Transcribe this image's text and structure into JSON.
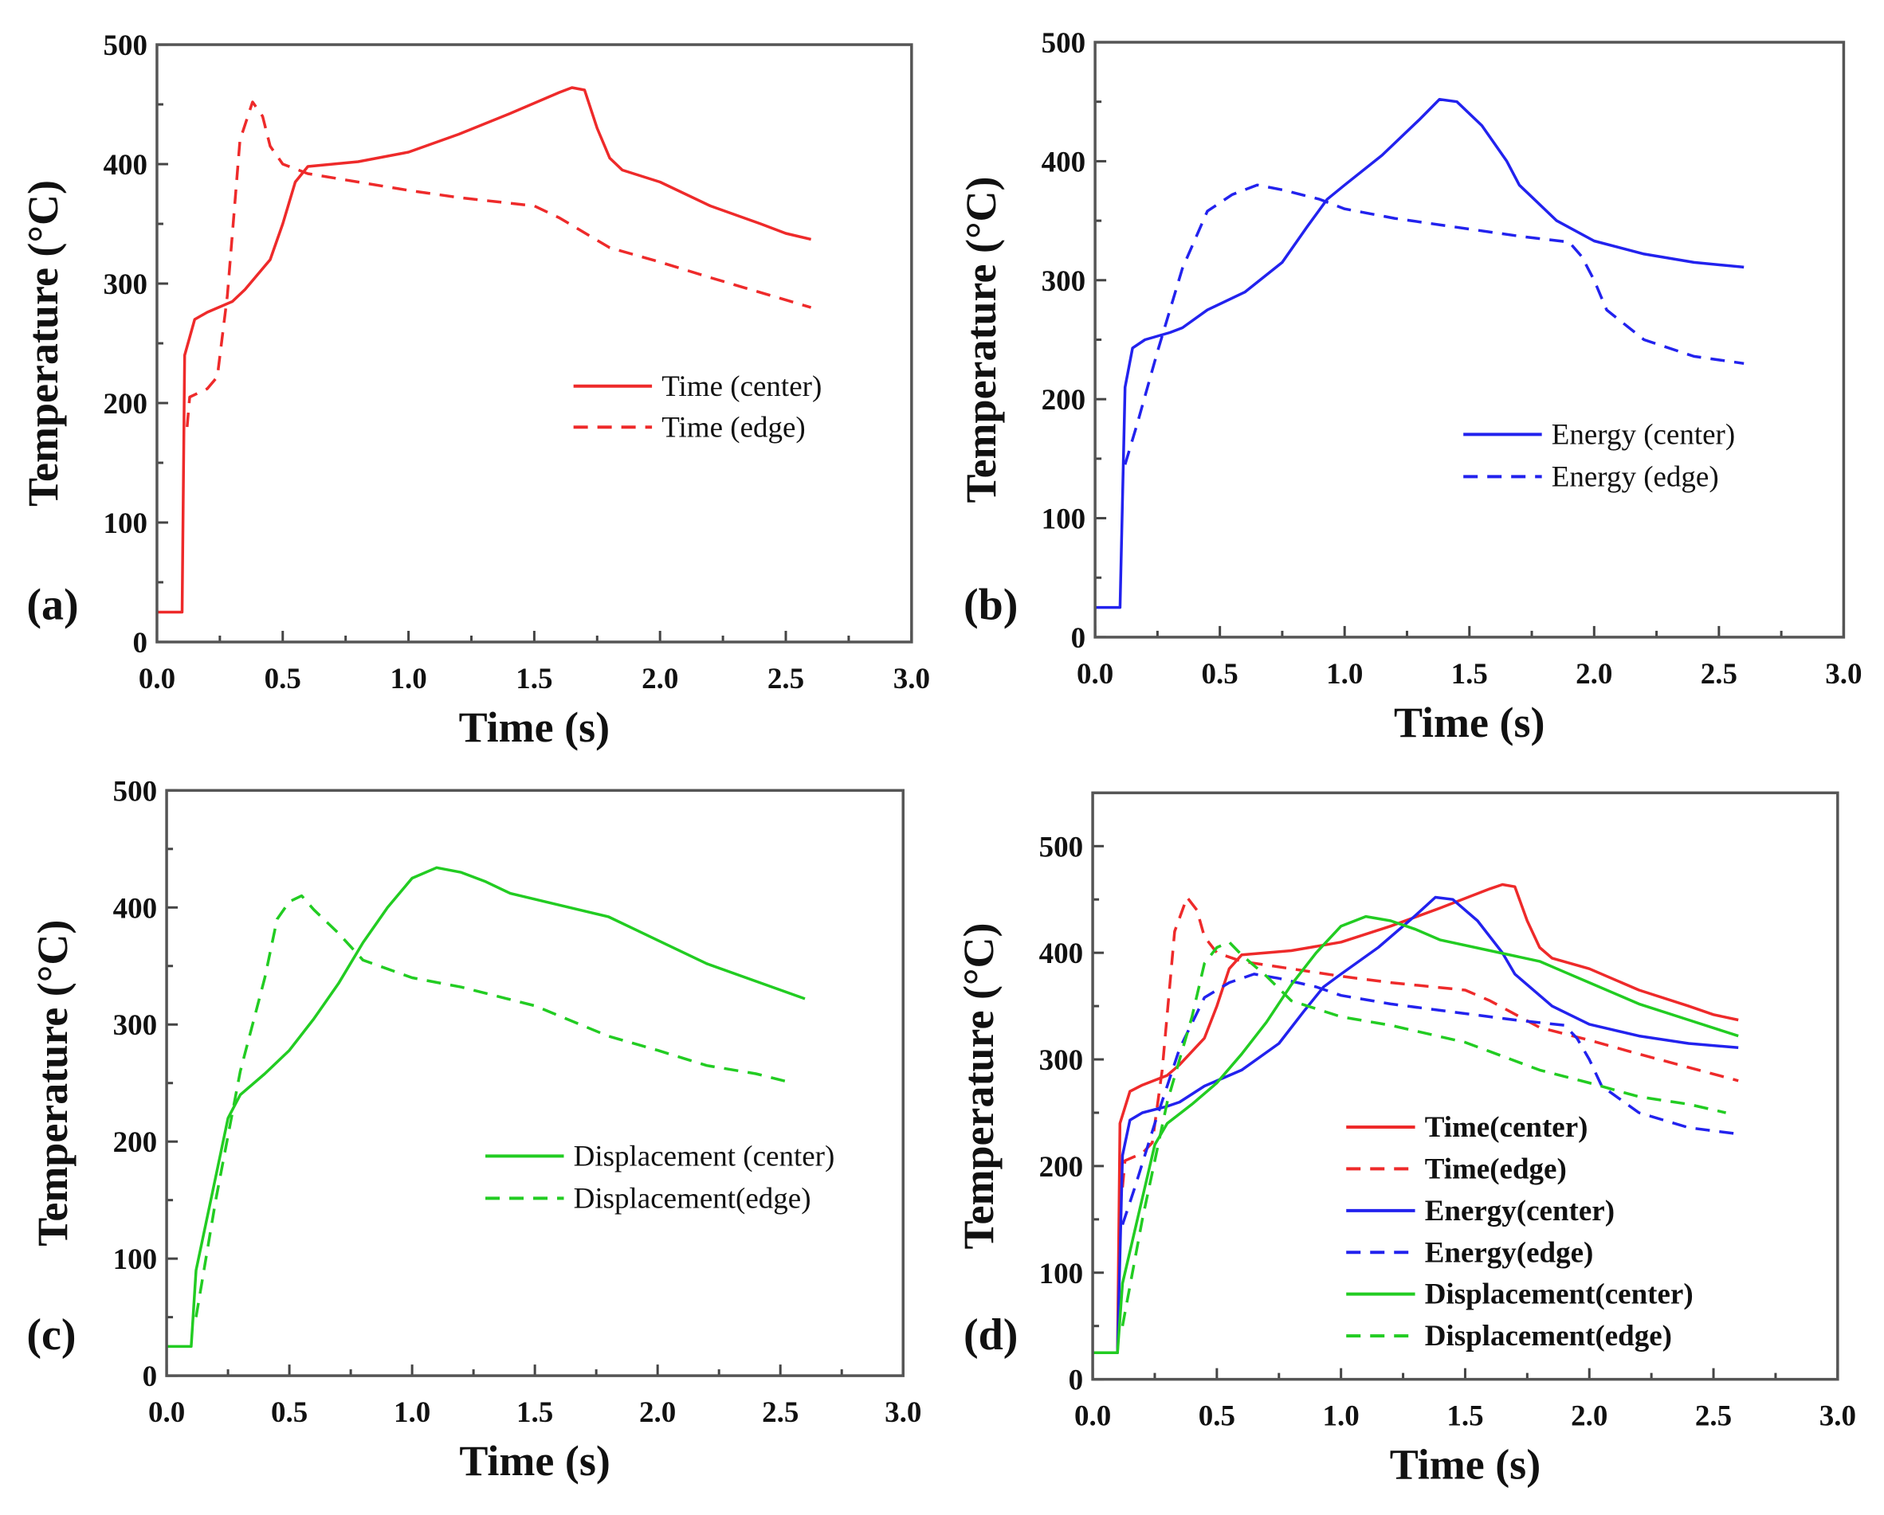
{
  "colors": {
    "time": "#ee2a2a",
    "energy": "#2222ee",
    "displacement": "#22cc22",
    "axis": "#555555"
  },
  "series_data": {
    "time_center": [
      [
        0,
        25
      ],
      [
        0.1,
        25
      ],
      [
        0.11,
        240
      ],
      [
        0.15,
        270
      ],
      [
        0.2,
        276
      ],
      [
        0.3,
        285
      ],
      [
        0.35,
        295
      ],
      [
        0.45,
        320
      ],
      [
        0.5,
        350
      ],
      [
        0.55,
        385
      ],
      [
        0.6,
        398
      ],
      [
        0.8,
        402
      ],
      [
        1.0,
        410
      ],
      [
        1.2,
        425
      ],
      [
        1.4,
        442
      ],
      [
        1.6,
        460
      ],
      [
        1.65,
        464
      ],
      [
        1.7,
        462
      ],
      [
        1.75,
        430
      ],
      [
        1.8,
        405
      ],
      [
        1.85,
        395
      ],
      [
        2.0,
        385
      ],
      [
        2.2,
        365
      ],
      [
        2.4,
        350
      ],
      [
        2.5,
        342
      ],
      [
        2.6,
        337
      ]
    ],
    "time_edge": [
      [
        0.12,
        180
      ],
      [
        0.13,
        205
      ],
      [
        0.2,
        212
      ],
      [
        0.24,
        222
      ],
      [
        0.28,
        290
      ],
      [
        0.33,
        420
      ],
      [
        0.38,
        452
      ],
      [
        0.42,
        440
      ],
      [
        0.45,
        415
      ],
      [
        0.5,
        400
      ],
      [
        0.6,
        392
      ],
      [
        1.0,
        378
      ],
      [
        1.2,
        372
      ],
      [
        1.5,
        365
      ],
      [
        1.6,
        355
      ],
      [
        1.8,
        330
      ],
      [
        2.0,
        318
      ],
      [
        2.2,
        305
      ],
      [
        2.6,
        280
      ]
    ],
    "energy_center": [
      [
        0,
        25
      ],
      [
        0.1,
        25
      ],
      [
        0.12,
        210
      ],
      [
        0.15,
        243
      ],
      [
        0.2,
        250
      ],
      [
        0.3,
        256
      ],
      [
        0.35,
        260
      ],
      [
        0.45,
        275
      ],
      [
        0.6,
        290
      ],
      [
        0.75,
        315
      ],
      [
        0.85,
        345
      ],
      [
        0.93,
        368
      ],
      [
        1.0,
        380
      ],
      [
        1.15,
        405
      ],
      [
        1.3,
        435
      ],
      [
        1.38,
        452
      ],
      [
        1.45,
        450
      ],
      [
        1.55,
        430
      ],
      [
        1.65,
        400
      ],
      [
        1.7,
        380
      ],
      [
        1.85,
        350
      ],
      [
        2.0,
        333
      ],
      [
        2.2,
        322
      ],
      [
        2.4,
        315
      ],
      [
        2.6,
        311
      ]
    ],
    "energy_edge": [
      [
        0.12,
        145
      ],
      [
        0.17,
        180
      ],
      [
        0.25,
        240
      ],
      [
        0.35,
        310
      ],
      [
        0.45,
        358
      ],
      [
        0.55,
        372
      ],
      [
        0.65,
        380
      ],
      [
        0.75,
        376
      ],
      [
        0.9,
        368
      ],
      [
        1.0,
        360
      ],
      [
        1.2,
        352
      ],
      [
        1.5,
        343
      ],
      [
        1.7,
        337
      ],
      [
        1.9,
        332
      ],
      [
        1.95,
        320
      ],
      [
        2.0,
        300
      ],
      [
        2.05,
        275
      ],
      [
        2.2,
        250
      ],
      [
        2.4,
        236
      ],
      [
        2.6,
        230
      ]
    ],
    "disp_center": [
      [
        0,
        25
      ],
      [
        0.1,
        25
      ],
      [
        0.12,
        90
      ],
      [
        0.2,
        170
      ],
      [
        0.25,
        220
      ],
      [
        0.3,
        240
      ],
      [
        0.4,
        258
      ],
      [
        0.5,
        278
      ],
      [
        0.6,
        305
      ],
      [
        0.7,
        335
      ],
      [
        0.8,
        370
      ],
      [
        0.9,
        400
      ],
      [
        1.0,
        425
      ],
      [
        1.1,
        434
      ],
      [
        1.2,
        430
      ],
      [
        1.3,
        422
      ],
      [
        1.4,
        412
      ],
      [
        1.6,
        402
      ],
      [
        1.8,
        392
      ],
      [
        1.9,
        382
      ],
      [
        2.0,
        372
      ],
      [
        2.2,
        352
      ],
      [
        2.4,
        337
      ],
      [
        2.6,
        322
      ]
    ],
    "disp_edge": [
      [
        0.12,
        50
      ],
      [
        0.2,
        150
      ],
      [
        0.3,
        260
      ],
      [
        0.4,
        340
      ],
      [
        0.45,
        390
      ],
      [
        0.5,
        405
      ],
      [
        0.55,
        410
      ],
      [
        0.6,
        398
      ],
      [
        0.7,
        378
      ],
      [
        0.8,
        355
      ],
      [
        1.0,
        340
      ],
      [
        1.2,
        332
      ],
      [
        1.5,
        316
      ],
      [
        1.8,
        290
      ],
      [
        2.0,
        278
      ],
      [
        2.2,
        265
      ],
      [
        2.4,
        258
      ],
      [
        2.55,
        250
      ]
    ]
  },
  "chart_data": [
    {
      "type": "line",
      "panel": "(a)",
      "xlabel": "Time (s)",
      "ylabel": "Temperature  (°C)",
      "xlim": [
        0,
        3
      ],
      "ylim": [
        0,
        500
      ],
      "xticks": [
        "0.0",
        "0.5",
        "1.0",
        "1.5",
        "2.0",
        "2.5",
        "3.0"
      ],
      "yticks": [
        "0",
        "100",
        "200",
        "300",
        "400",
        "500"
      ],
      "legend_placement": "center-right",
      "series": [
        {
          "name": "Time (center)",
          "key": "time_center",
          "color": "time",
          "dash": false
        },
        {
          "name": "Time (edge)",
          "key": "time_edge",
          "color": "time",
          "dash": true
        }
      ]
    },
    {
      "type": "line",
      "panel": "(b)",
      "xlabel": "Time (s)",
      "ylabel": "Temperature  (°C)",
      "xlim": [
        0,
        3
      ],
      "ylim": [
        0,
        500
      ],
      "xticks": [
        "0.0",
        "0.5",
        "1.0",
        "1.5",
        "2.0",
        "2.5",
        "3.0"
      ],
      "yticks": [
        "0",
        "100",
        "200",
        "300",
        "400",
        "500"
      ],
      "legend_placement": "center-right",
      "series": [
        {
          "name": "Energy (center)",
          "key": "energy_center",
          "color": "energy",
          "dash": false
        },
        {
          "name": "Energy (edge)",
          "key": "energy_edge",
          "color": "energy",
          "dash": true
        }
      ]
    },
    {
      "type": "line",
      "panel": "(c)",
      "xlabel": "Time (s)",
      "ylabel": "Temperature  (°C)",
      "xlim": [
        0,
        3
      ],
      "ylim": [
        0,
        500
      ],
      "xticks": [
        "0.0",
        "0.5",
        "1.0",
        "1.5",
        "2.0",
        "2.5",
        "3.0"
      ],
      "yticks": [
        "0",
        "100",
        "200",
        "300",
        "400",
        "500"
      ],
      "legend_placement": "center-right",
      "series": [
        {
          "name": "Displacement (center)",
          "key": "disp_center",
          "color": "displacement",
          "dash": false
        },
        {
          "name": "Displacement(edge)",
          "key": "disp_edge",
          "color": "displacement",
          "dash": true
        }
      ]
    },
    {
      "type": "line",
      "panel": "(d)",
      "xlabel": "Time (s)",
      "ylabel": "Temperature (°C)",
      "xlim": [
        0,
        3
      ],
      "ylim": [
        0,
        550
      ],
      "xticks": [
        "0.0",
        "0.5",
        "1.0",
        "1.5",
        "2.0",
        "2.5",
        "3.0"
      ],
      "yticks": [
        "0",
        "100",
        "200",
        "300",
        "400",
        "500"
      ],
      "legend_placement": "bottom-right",
      "series": [
        {
          "name": "Time(center)",
          "key": "time_center",
          "color": "time",
          "dash": false
        },
        {
          "name": "Time(edge)",
          "key": "time_edge",
          "color": "time",
          "dash": true
        },
        {
          "name": "Energy(center)",
          "key": "energy_center",
          "color": "energy",
          "dash": false
        },
        {
          "name": "Energy(edge)",
          "key": "energy_edge",
          "color": "energy",
          "dash": true
        },
        {
          "name": "Displacement(center)",
          "key": "disp_center",
          "color": "displacement",
          "dash": false
        },
        {
          "name": "Displacement(edge)",
          "key": "disp_edge",
          "color": "displacement",
          "dash": true
        }
      ]
    }
  ]
}
